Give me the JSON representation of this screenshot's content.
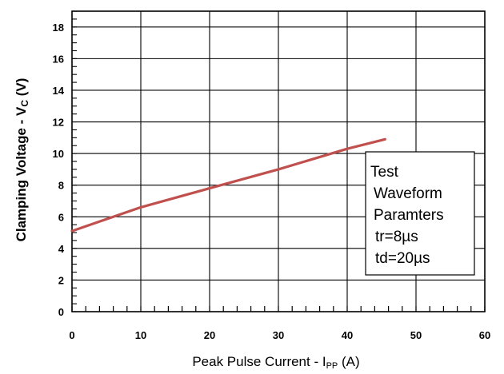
{
  "chart_data": {
    "type": "line",
    "xlabel": "Peak Pulse Current - I",
    "xlabel_sub": "PP",
    "xlabel_unit": " (A)",
    "ylabel": "Clamping Voltage - V",
    "ylabel_sub": "C",
    "ylabel_unit": " (V)",
    "xlim": [
      0,
      60
    ],
    "ylim": [
      0,
      19
    ],
    "x_ticks": [
      0,
      10,
      20,
      30,
      40,
      50,
      60
    ],
    "y_ticks": [
      0,
      2,
      4,
      6,
      8,
      10,
      12,
      14,
      16,
      18
    ],
    "grid": true,
    "series": [
      {
        "color": "#c0504d",
        "x": [
          0,
          10,
          20,
          30,
          40,
          45.5
        ],
        "y": [
          5.1,
          6.6,
          7.8,
          9.0,
          10.3,
          10.9
        ]
      }
    ],
    "annotation_box": {
      "lines": [
        "Test",
        "Waveform",
        "Paramters",
        "tr=8µs",
        "td=20µs"
      ],
      "placement": "right"
    }
  }
}
